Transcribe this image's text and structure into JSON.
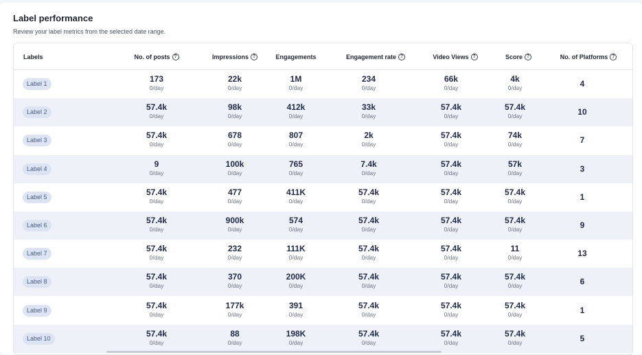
{
  "header": {
    "title": "Label performance",
    "subtitle": "Review your label metrics from the selected date range."
  },
  "columns": [
    {
      "label": "Labels",
      "info": false
    },
    {
      "label": "No. of posts",
      "info": true
    },
    {
      "label": "Impressions",
      "info": true
    },
    {
      "label": "Engagements",
      "info": false
    },
    {
      "label": "Engagement rate",
      "info": true
    },
    {
      "label": "Video Views",
      "info": true
    },
    {
      "label": "Score",
      "info": true
    },
    {
      "label": "No. of Platforms",
      "info": true
    }
  ],
  "info_icon_glyph": "?",
  "rows": [
    {
      "label": "Label 1",
      "posts": "173",
      "posts_sub": "0/day",
      "impressions": "22k",
      "impressions_sub": "0/day",
      "engagements": "1M",
      "engagements_sub": "0/day",
      "eng_rate": "234",
      "eng_rate_sub": "0/day",
      "video_views": "66k",
      "video_views_sub": "0/day",
      "score": "4k",
      "score_sub": "0/day",
      "platforms": "4"
    },
    {
      "label": "Label 2",
      "posts": "57.4k",
      "posts_sub": "0/day",
      "impressions": "98k",
      "impressions_sub": "0/day",
      "engagements": "412k",
      "engagements_sub": "0/day",
      "eng_rate": "33k",
      "eng_rate_sub": "0/day",
      "video_views": "57.4k",
      "video_views_sub": "0/day",
      "score": "57.4k",
      "score_sub": "0/day",
      "platforms": "10"
    },
    {
      "label": "Label 3",
      "posts": "57.4k",
      "posts_sub": "0/day",
      "impressions": "678",
      "impressions_sub": "0/day",
      "engagements": "807",
      "engagements_sub": "0/day",
      "eng_rate": "2k",
      "eng_rate_sub": "0/day",
      "video_views": "57.4k",
      "video_views_sub": "0/day",
      "score": "74k",
      "score_sub": "0/day",
      "platforms": "7"
    },
    {
      "label": "Label 4",
      "posts": "9",
      "posts_sub": "0/day",
      "impressions": "100k",
      "impressions_sub": "0/day",
      "engagements": "765",
      "engagements_sub": "0/day",
      "eng_rate": "7.4k",
      "eng_rate_sub": "0/day",
      "video_views": "57.4k",
      "video_views_sub": "0/day",
      "score": "57k",
      "score_sub": "0/day",
      "platforms": "3"
    },
    {
      "label": "Label 5",
      "posts": "57.4k",
      "posts_sub": "0/day",
      "impressions": "477",
      "impressions_sub": "0/day",
      "engagements": "411K",
      "engagements_sub": "0/day",
      "eng_rate": "57.4k",
      "eng_rate_sub": "0/day",
      "video_views": "57.4k",
      "video_views_sub": "0/day",
      "score": "57.4k",
      "score_sub": "0/day",
      "platforms": "1"
    },
    {
      "label": "Label 6",
      "posts": "57.4k",
      "posts_sub": "0/day",
      "impressions": "900k",
      "impressions_sub": "0/day",
      "engagements": "574",
      "engagements_sub": "0/day",
      "eng_rate": "57.4k",
      "eng_rate_sub": "0/day",
      "video_views": "57.4k",
      "video_views_sub": "0/day",
      "score": "57.4k",
      "score_sub": "0/day",
      "platforms": "9"
    },
    {
      "label": "Label 7",
      "posts": "57.4k",
      "posts_sub": "0/day",
      "impressions": "232",
      "impressions_sub": "0/day",
      "engagements": "111K",
      "engagements_sub": "0/day",
      "eng_rate": "57.4k",
      "eng_rate_sub": "0/day",
      "video_views": "57.4k",
      "video_views_sub": "0/day",
      "score": "11",
      "score_sub": "0/day",
      "platforms": "13"
    },
    {
      "label": "Label 8",
      "posts": "57.4k",
      "posts_sub": "0/day",
      "impressions": "370",
      "impressions_sub": "0/day",
      "engagements": "200K",
      "engagements_sub": "0/day",
      "eng_rate": "57.4k",
      "eng_rate_sub": "0/day",
      "video_views": "57.4k",
      "video_views_sub": "0/day",
      "score": "57.4k",
      "score_sub": "0/day",
      "platforms": "6"
    },
    {
      "label": "Label 9",
      "posts": "57.4k",
      "posts_sub": "0/day",
      "impressions": "177k",
      "impressions_sub": "0/day",
      "engagements": "391",
      "engagements_sub": "0/day",
      "eng_rate": "57.4k",
      "eng_rate_sub": "0/day",
      "video_views": "57.4k",
      "video_views_sub": "0/day",
      "score": "57.4k",
      "score_sub": "0/day",
      "platforms": "1"
    },
    {
      "label": "Label 10",
      "posts": "57.4k",
      "posts_sub": "0/day",
      "impressions": "88",
      "impressions_sub": "0/day",
      "engagements": "198K",
      "engagements_sub": "0/day",
      "eng_rate": "57.4k",
      "eng_rate_sub": "0/day",
      "video_views": "57.4k",
      "video_views_sub": "0/day",
      "score": "57.4k",
      "score_sub": "0/day",
      "platforms": "5"
    }
  ],
  "colors": {
    "label_pill_bg": "#dce4f4",
    "alt_row_bg": "#eef1f7",
    "text_primary": "#1f2a4a"
  }
}
